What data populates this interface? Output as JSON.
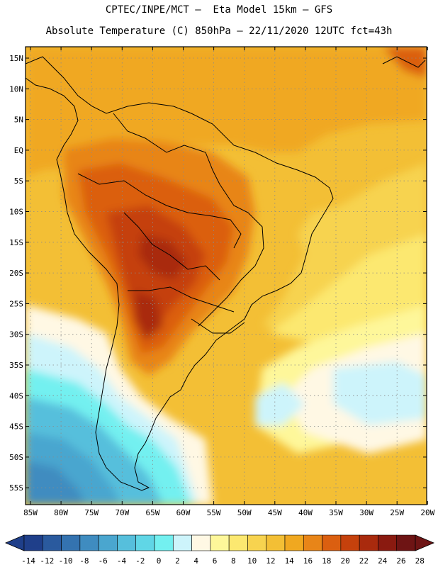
{
  "title_line1": "CPTEC/INPE/MCT –  Eta Model 15km – GFS",
  "title_line2": "Absolute Temperature (C) 850hPa – 22/11/2020 12UTC fct=43h",
  "lat_labels": [
    "15N",
    "10N",
    "5N",
    "EQ",
    "5S",
    "10S",
    "15S",
    "20S",
    "25S",
    "30S",
    "35S",
    "40S",
    "45S",
    "50S",
    "55S"
  ],
  "lon_labels": [
    "85W",
    "80W",
    "75W",
    "70W",
    "65W",
    "60W",
    "55W",
    "50W",
    "45W",
    "40W",
    "35W",
    "30W",
    "25W",
    "20W"
  ],
  "colorbar": {
    "colors": [
      "#1f3f8a",
      "#2a5a9e",
      "#3473b0",
      "#3f8cc0",
      "#4aa6cf",
      "#56bfdc",
      "#60d6e6",
      "#73f0f0",
      "#cdf4fb",
      "#fff8e4",
      "#fef79a",
      "#fce870",
      "#f7d34f",
      "#f3bf35",
      "#f0a820",
      "#e88518",
      "#db5f10",
      "#c5410c",
      "#a92a0d",
      "#8a1a10",
      "#6e1414"
    ],
    "ticks": [
      "-14",
      "-12",
      "-10",
      "-8",
      "-6",
      "-4",
      "-2",
      "0",
      "2",
      "4",
      "6",
      "8",
      "10",
      "12",
      "14",
      "16",
      "18",
      "20",
      "22",
      "24",
      "26",
      "28"
    ]
  },
  "map_icon": "south-america-temperature-map"
}
